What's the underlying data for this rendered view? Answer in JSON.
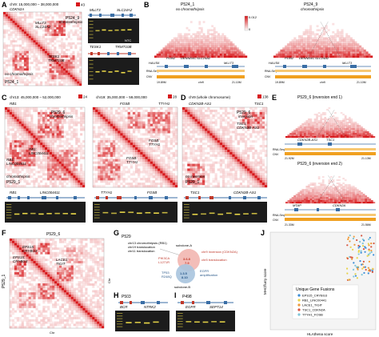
{
  "colors": {
    "contact_red": "#d7191c",
    "light_red": "#f3a6a6",
    "gel_bg": "#1c1c1c",
    "gel_band": "#f3e04a",
    "track_orange": "#f0a020",
    "gene_blue": "#3a6ea5",
    "venn_red": "#f2b6b0",
    "venn_blue": "#a9c4de",
    "dot_grey": "#bdbdbd"
  },
  "panels": {
    "A": {
      "letter": "A",
      "region": "chr9: 15,000,000 – 38,000,000",
      "genes": [
        "CDKN2A",
        "MLLT3",
        "SLC24A2",
        "TESK1",
        "TRMT10B"
      ],
      "samples": [
        "P524_9",
        "P524_1"
      ],
      "cond_yes": "chromothripsis",
      "cond_no": "no chromothripsis",
      "scale_max": "43",
      "gel_top_label": "NTC",
      "gel_top_genes": [
        "MLLT3",
        "SLC24A2"
      ],
      "gel_bottom_genes": [
        "TESK1",
        "TRMT10B"
      ]
    },
    "B": {
      "letter": "B",
      "samples": [
        "P524_1",
        "P524_9"
      ],
      "conditions": [
        "no chromothripsis",
        "chromothripsis"
      ],
      "genes": [
        "PLIN2",
        "DENND4C",
        "SLC24A2",
        "MLLT3",
        "HAUS6"
      ],
      "scale_max": "0.012",
      "scale_min": "0",
      "track_labels": [
        "RNA-Seq",
        "CNV"
      ],
      "axis_start": "19.89M",
      "axis_end": "21.10M",
      "axis_chr": "chr9"
    },
    "C": {
      "letter": "C",
      "left": {
        "region": "chr13: 45,000,000 – 52,000,000",
        "scale_max": "24",
        "gene": "RB1",
        "fusion_a": "RB1:",
        "fusion_b": "LINC004411",
        "sample_top": "P529_6",
        "cond_top": "chromothripsis",
        "sample_bottom": "P529_1",
        "cond_bottom": "chromothripsis",
        "gene_bottom_a": "RB1",
        "gene_bottom_b": "LINC004411"
      },
      "right": {
        "region": "chr19: 35,000,000 – 59,000,000",
        "scale_max": "28",
        "genes_top": [
          "FOSB",
          "TTYH1"
        ],
        "fusion_a": "FOSB:",
        "fusion_b": "TTYH1",
        "genes_bottom": [
          "TTYH1",
          "FOSB"
        ]
      }
    },
    "D": {
      "letter": "D",
      "region": "chr9 (whole chromosome)",
      "scale_max": "138",
      "genes": [
        "CDKN2B-AS1",
        "TSC1"
      ],
      "sample": "P529_6",
      "cond": "inversion",
      "fusion_a": "TSC1:",
      "fusion_b": "CDKN2B-AS1",
      "cond_bottom": "no inversion",
      "sample_bottom": "P529_1",
      "track_genes": [
        "TSC1",
        "CDKN2B-AS1"
      ]
    },
    "E": {
      "letter": "E",
      "top": "P529_6 (inversion end 1)",
      "bottom": "P529_6 (inversion end 2)",
      "genes_top": [
        "CDKN2B-AS1",
        "TSC1"
      ],
      "genes_bottom": [
        "MTAP",
        "CDKN2A"
      ],
      "track_labels": [
        "RNA-Seq",
        "CNV"
      ],
      "axis_top": [
        "21.92M",
        "21.13M"
      ],
      "axis_bottom": [
        "21.33M",
        "21.56M"
      ]
    },
    "F": {
      "letter": "F",
      "sample_top": "P529_6",
      "sample_left": "P529_1",
      "fusions": [
        "EPS15:",
        "CRYBG3",
        "LACE1:",
        "TIGIT",
        "EPS15:",
        "CRYBG3"
      ],
      "axis_label": "Chr"
    },
    "G": {
      "letter": "G",
      "sample": "P529",
      "notes": [
        "chr13 chromothripsis (RB1)",
        "chr19 translocation",
        "chr11 translocation"
      ],
      "red_labels": [
        "PIK3CA",
        "L1271R"
      ],
      "red_mid": "chr9 inversion (CDKN2A)",
      "red_right": "chr5 translocation",
      "blue_labels": [
        "TP53",
        "R248Q"
      ],
      "blue_right": [
        "EGFR",
        "amplification"
      ],
      "sub_a": "subclone-A",
      "sub_b": "subclone-B",
      "circ_top": [
        "3.6.8",
        "7.9"
      ],
      "circ_bottom": [
        "1.3.5",
        "8.10"
      ]
    },
    "H": {
      "letter": "H",
      "sample": "P503",
      "genes": [
        "BCR",
        "NTRK2"
      ]
    },
    "I": {
      "letter": "I",
      "sample": "P498",
      "genes": [
        "EGFR",
        "SEPT14"
      ]
    },
    "J": {
      "letter": "J",
      "ylabel": "MHCflurry score",
      "xlabel": "HLAthena score",
      "legend_title": "Unique Gene Fusions",
      "legend": [
        {
          "name": "EPS15_CRYBG3",
          "color": "#3b8dd8"
        },
        {
          "name": "RB1_LINC00441",
          "color": "#e8d44a"
        },
        {
          "name": "LACE1_TIGIT",
          "color": "#ee9a3a"
        },
        {
          "name": "TSC1_CDKN2A",
          "color": "#d9553f"
        },
        {
          "name": "TTYH1_FOSB",
          "color": "#7fc6d9"
        }
      ]
    }
  }
}
